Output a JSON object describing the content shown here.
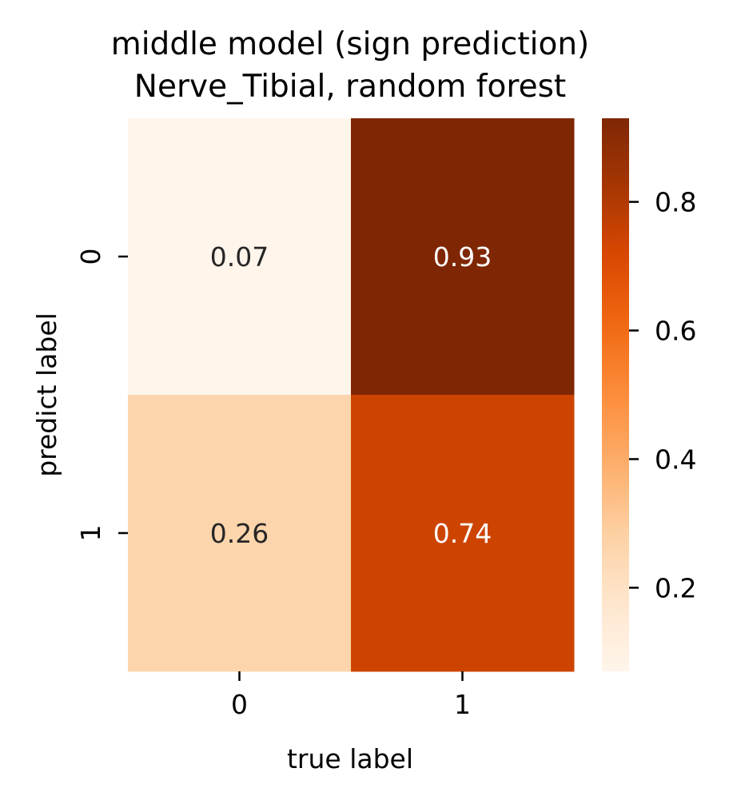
{
  "chart_data": {
    "type": "heatmap",
    "title_line1": "middle model (sign prediction)",
    "title_line2": "Nerve_Tibial, random forest",
    "xlabel": "true label",
    "ylabel": "predict label",
    "x_categories": [
      "0",
      "1"
    ],
    "y_categories": [
      "0",
      "1"
    ],
    "values": [
      [
        0.07,
        0.93
      ],
      [
        0.26,
        0.74
      ]
    ],
    "value_labels": [
      [
        "0.07",
        "0.93"
      ],
      [
        "0.26",
        "0.74"
      ]
    ],
    "colormap": "Oranges",
    "vmin": 0.07,
    "vmax": 0.93,
    "colorbar_ticks": [
      0.2,
      0.4,
      0.6,
      0.8
    ],
    "colorbar_tick_labels": [
      "0.2",
      "0.4",
      "0.6",
      "0.8"
    ],
    "annotation_colors": {
      "light": "#262626",
      "dark": "#ffffff"
    }
  }
}
